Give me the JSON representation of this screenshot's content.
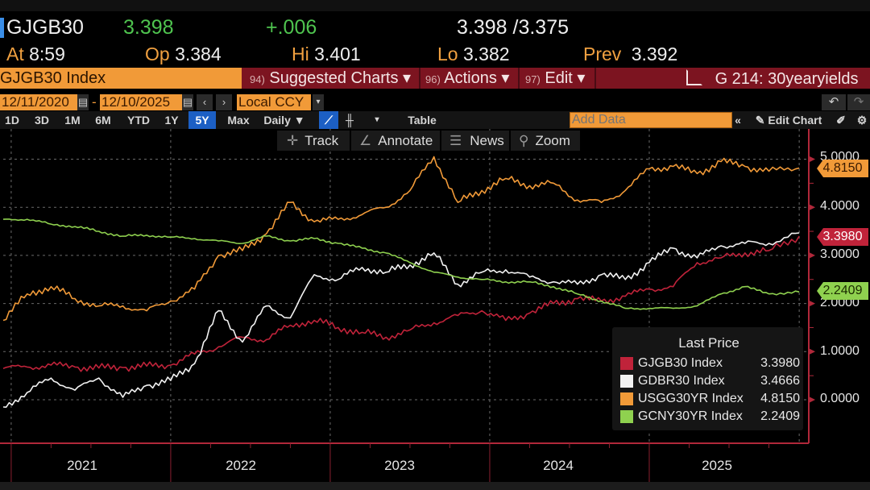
{
  "quote": {
    "ticker": "GJGB30",
    "last": "3.398",
    "change": "+.006",
    "bid_ask": "3.398 /3.375",
    "at_label": "At",
    "at_value": "8:59",
    "open_label": "Op",
    "open_value": "3.384",
    "high_label": "Hi",
    "high_value": "3.401",
    "low_label": "Lo",
    "low_value": "3.382",
    "prev_label": "Prev",
    "prev_value": "3.392"
  },
  "menu": {
    "security": "GJGB30 Index",
    "suggested_num": "94)",
    "suggested_label": "Suggested Charts ▾",
    "actions_num": "96)",
    "actions_label": "Actions ▾",
    "edit_num": "97)",
    "edit_label": "Edit ▾",
    "chart_name": "G 214: 30yearyields"
  },
  "controls": {
    "start_date": "12/11/2020",
    "end_date": "12/10/2025",
    "dash": "-",
    "currency": "Local CCY",
    "periods": [
      "1D",
      "3D",
      "1M",
      "6M",
      "YTD",
      "1Y",
      "5Y",
      "Max"
    ],
    "selected_period": "5Y",
    "frequency": "Daily ▼",
    "table_label": "Table",
    "add_data_placeholder": "Add Data",
    "edit_chart_label": "Edit Chart",
    "collapse_label": "«"
  },
  "tools": {
    "track": "Track",
    "annotate": "Annotate",
    "news": "News",
    "zoom": "Zoom"
  },
  "chart_data": {
    "type": "line",
    "title": "G 214: 30yearyields",
    "xlabel": "",
    "ylabel": "",
    "x_ticks": [
      "2021",
      "2022",
      "2023",
      "2024",
      "2025"
    ],
    "x_range": [
      "2020-12-11",
      "2025-12-10"
    ],
    "ylim": [
      -0.3,
      5.3
    ],
    "y_ticks": [
      "5.0000",
      "4.0000",
      "3.0000",
      "2.0000",
      "1.0000",
      "0.0000"
    ],
    "y_tick_values": [
      5,
      4,
      3,
      2,
      1,
      0
    ],
    "grid": true,
    "legend_position": "bottom-right",
    "legend_title": "Last Price",
    "x": [
      2020.95,
      2021.1,
      2021.25,
      2021.4,
      2021.55,
      2021.7,
      2021.85,
      2022.0,
      2022.15,
      2022.3,
      2022.45,
      2022.6,
      2022.75,
      2022.9,
      2023.05,
      2023.2,
      2023.35,
      2023.5,
      2023.65,
      2023.8,
      2023.95,
      2024.1,
      2024.25,
      2024.4,
      2024.55,
      2024.7,
      2024.85,
      2025.0,
      2025.15,
      2025.3,
      2025.45,
      2025.6,
      2025.75,
      2025.94
    ],
    "series": [
      {
        "name": "GJGB30 Index",
        "color": "#c0233a",
        "last": "3.3980",
        "values": [
          0.65,
          0.68,
          0.72,
          0.68,
          0.66,
          0.67,
          0.7,
          0.72,
          0.95,
          1.1,
          1.3,
          1.25,
          1.55,
          1.65,
          1.5,
          1.4,
          1.3,
          1.45,
          1.6,
          1.75,
          1.85,
          1.65,
          1.8,
          2.0,
          2.1,
          2.05,
          2.15,
          2.3,
          2.35,
          2.85,
          2.95,
          3.05,
          3.1,
          3.398
        ]
      },
      {
        "name": "GDBR30 Index",
        "color": "#f2f2f2",
        "last": "3.4666",
        "values": [
          -0.15,
          0.15,
          0.45,
          0.2,
          0.45,
          0.05,
          0.3,
          0.4,
          0.75,
          1.85,
          1.2,
          1.95,
          1.7,
          2.6,
          2.5,
          2.75,
          2.65,
          2.8,
          3.05,
          2.4,
          2.65,
          2.7,
          2.55,
          2.45,
          2.4,
          2.6,
          2.5,
          2.85,
          3.15,
          2.95,
          3.2,
          3.25,
          3.25,
          3.4666
        ]
      },
      {
        "name": "USGG30YR Index",
        "color": "#f19a38",
        "last": "4.8150",
        "values": [
          1.65,
          2.2,
          2.35,
          2.1,
          1.95,
          1.95,
          1.85,
          2.05,
          2.3,
          3.0,
          3.1,
          3.45,
          4.1,
          3.7,
          3.75,
          3.85,
          4.0,
          4.35,
          5.05,
          4.1,
          4.35,
          4.6,
          4.45,
          4.5,
          4.15,
          4.1,
          4.35,
          4.8,
          4.85,
          4.7,
          4.95,
          4.85,
          4.75,
          4.815
        ]
      },
      {
        "name": "GCNY30YR Index",
        "color": "#8fd14f",
        "last": "2.2409",
        "values": [
          3.75,
          3.75,
          3.65,
          3.6,
          3.5,
          3.4,
          3.42,
          3.38,
          3.35,
          3.3,
          3.25,
          3.4,
          3.3,
          3.35,
          3.25,
          3.15,
          3.05,
          2.85,
          2.65,
          2.55,
          2.5,
          2.45,
          2.45,
          2.35,
          2.2,
          2.05,
          1.9,
          1.9,
          1.9,
          1.95,
          2.2,
          2.35,
          2.2,
          2.2409
        ]
      }
    ]
  },
  "axis_tags": {
    "usgg": "4.8150",
    "gjgb": "3.3980",
    "gcny": "2.2409"
  }
}
